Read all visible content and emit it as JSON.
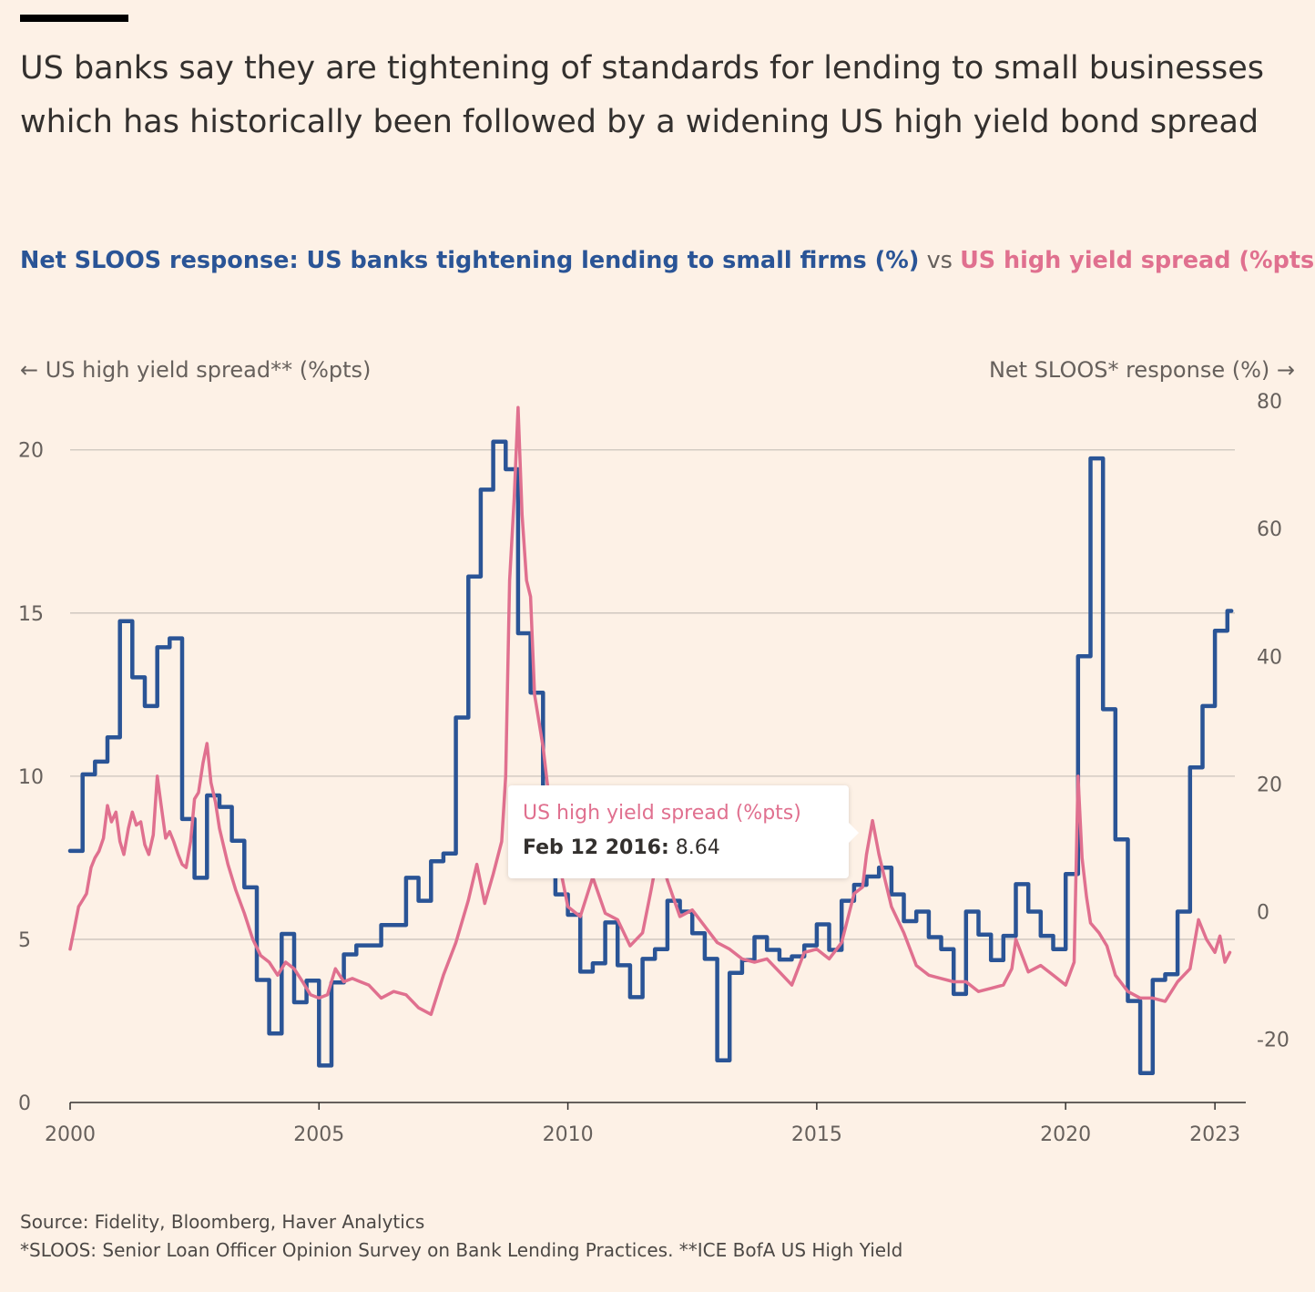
{
  "header": {
    "title": "US banks say they are tightening of standards for lending to small businesses which has historically been followed by a widening US high yield bond spread",
    "subtitle_series1": "Net SLOOS response: US banks tightening lending to small firms (%)",
    "subtitle_vs": "vs",
    "subtitle_series2": "US high yield spread (%pts)"
  },
  "axes": {
    "left_title": "← US high yield spread** (%pts)",
    "right_title": "Net SLOOS* response (%) →"
  },
  "tooltip": {
    "series": "US high yield spread (%pts)",
    "date": "Feb 12 2016:",
    "value": "8.64"
  },
  "footer": {
    "source": "Source: Fidelity, Bloomberg, Haver Analytics",
    "note": "*SLOOS: Senior Loan Officer Opinion Survey on Bank Lending Practices. **ICE BofA US High Yield"
  },
  "colors": {
    "sloos": "#2a5496",
    "spread": "#e0708f",
    "grid": "#cbc4bc",
    "background": "#fdf1e6"
  },
  "chart_data": {
    "type": "line",
    "title": "US banks say they are tightening of standards for lending to small businesses which has historically been followed by a widening US high yield bond spread",
    "x_ticks": [
      "2000",
      "2005",
      "2010",
      "2015",
      "2020",
      "2023"
    ],
    "xlim": [
      2000,
      2023.4
    ],
    "y_left": {
      "label": "← US high yield spread** (%pts)",
      "lim": [
        0,
        21.5
      ],
      "ticks": [
        "0",
        "5",
        "10",
        "15",
        "20"
      ]
    },
    "y_right": {
      "label": "Net SLOOS* response (%) →",
      "lim": [
        -29.9,
        80
      ],
      "ticks": [
        "-20",
        "0",
        "20",
        "40",
        "60",
        "80"
      ]
    },
    "grid": true,
    "series": [
      {
        "name": "Net SLOOS response: US banks tightening lending to small firms (%)",
        "axis": "right",
        "style": "step",
        "x": [
          2000.0,
          2000.25,
          2000.5,
          2000.75,
          2001.0,
          2001.25,
          2001.5,
          2001.75,
          2002.0,
          2002.25,
          2002.5,
          2002.75,
          2003.0,
          2003.25,
          2003.5,
          2003.75,
          2004.0,
          2004.25,
          2004.5,
          2004.75,
          2005.0,
          2005.25,
          2005.5,
          2005.75,
          2006.0,
          2006.25,
          2006.5,
          2006.75,
          2007.0,
          2007.25,
          2007.5,
          2007.75,
          2008.0,
          2008.25,
          2008.5,
          2008.75,
          2009.0,
          2009.25,
          2009.5,
          2009.75,
          2010.0,
          2010.25,
          2010.5,
          2010.75,
          2011.0,
          2011.25,
          2011.5,
          2011.75,
          2012.0,
          2012.25,
          2012.5,
          2012.75,
          2013.0,
          2013.25,
          2013.5,
          2013.75,
          2014.0,
          2014.25,
          2014.5,
          2014.75,
          2015.0,
          2015.25,
          2015.5,
          2015.75,
          2016.0,
          2016.25,
          2016.5,
          2016.75,
          2017.0,
          2017.25,
          2017.5,
          2017.75,
          2018.0,
          2018.25,
          2018.5,
          2018.75,
          2019.0,
          2019.25,
          2019.5,
          2019.75,
          2020.0,
          2020.25,
          2020.5,
          2020.75,
          2021.0,
          2021.25,
          2021.5,
          2021.75,
          2022.0,
          2022.25,
          2022.5,
          2022.75,
          2023.0,
          2023.25
        ],
        "y": [
          9.5,
          21.5,
          23.5,
          27.3,
          45.5,
          36.7,
          32.2,
          41.4,
          42.8,
          14.5,
          5.3,
          18.2,
          16.4,
          11.1,
          3.8,
          -10.7,
          -19.1,
          -3.5,
          -14.2,
          -10.8,
          -24.1,
          -11.1,
          -6.7,
          -5.3,
          -5.3,
          -2.1,
          -2.1,
          5.3,
          1.7,
          7.9,
          9.1,
          30.4,
          52.5,
          66.1,
          73.6,
          69.3,
          43.6,
          34.3,
          19.0,
          2.7,
          -0.5,
          -9.4,
          -8.1,
          -1.7,
          -8.4,
          -13.4,
          -7.4,
          -5.9,
          1.7,
          0.0,
          -3.4,
          -7.4,
          -23.3,
          -9.6,
          -7.6,
          -4.0,
          -6.0,
          -7.5,
          -7.0,
          -5.3,
          -2.0,
          -6.0,
          1.7,
          4.2,
          5.5,
          6.9,
          2.7,
          -1.5,
          0.0,
          -4.0,
          -5.9,
          -12.9,
          0.0,
          -3.6,
          -7.6,
          -3.8,
          4.3,
          0.0,
          -3.8,
          -5.9,
          5.9,
          40.0,
          71.0,
          31.7,
          11.3,
          -14.0,
          -25.3,
          -10.7,
          -9.8,
          0.0,
          22.6,
          32.2,
          44.0,
          47.1
        ]
      },
      {
        "name": "US high yield spread (%pts)",
        "axis": "left",
        "style": "line",
        "x": [
          2000.0,
          2000.08,
          2000.17,
          2000.25,
          2000.33,
          2000.42,
          2000.5,
          2000.58,
          2000.67,
          2000.75,
          2000.83,
          2000.92,
          2001.0,
          2001.08,
          2001.17,
          2001.25,
          2001.33,
          2001.42,
          2001.5,
          2001.58,
          2001.67,
          2001.75,
          2001.83,
          2001.92,
          2002.0,
          2002.08,
          2002.17,
          2002.25,
          2002.33,
          2002.42,
          2002.5,
          2002.58,
          2002.67,
          2002.75,
          2002.83,
          2002.92,
          2003.0,
          2003.17,
          2003.33,
          2003.5,
          2003.67,
          2003.83,
          2004.0,
          2004.17,
          2004.33,
          2004.5,
          2004.67,
          2004.83,
          2005.0,
          2005.17,
          2005.33,
          2005.5,
          2005.67,
          2005.83,
          2006.0,
          2006.25,
          2006.5,
          2006.75,
          2007.0,
          2007.25,
          2007.5,
          2007.75,
          2008.0,
          2008.17,
          2008.33,
          2008.5,
          2008.67,
          2008.75,
          2008.83,
          2008.92,
          2009.0,
          2009.08,
          2009.17,
          2009.25,
          2009.33,
          2009.5,
          2009.67,
          2009.83,
          2010.0,
          2010.25,
          2010.5,
          2010.75,
          2011.0,
          2011.25,
          2011.5,
          2011.67,
          2011.83,
          2012.0,
          2012.25,
          2012.5,
          2012.75,
          2013.0,
          2013.25,
          2013.5,
          2013.75,
          2014.0,
          2014.25,
          2014.5,
          2014.75,
          2015.0,
          2015.25,
          2015.5,
          2015.75,
          2015.92,
          2016.0,
          2016.12,
          2016.25,
          2016.5,
          2016.75,
          2017.0,
          2017.25,
          2017.5,
          2017.75,
          2018.0,
          2018.25,
          2018.5,
          2018.75,
          2018.92,
          2019.0,
          2019.25,
          2019.5,
          2019.75,
          2020.0,
          2020.17,
          2020.25,
          2020.33,
          2020.42,
          2020.5,
          2020.67,
          2020.83,
          2021.0,
          2021.25,
          2021.5,
          2021.75,
          2022.0,
          2022.25,
          2022.5,
          2022.67,
          2022.83,
          2023.0,
          2023.1,
          2023.2,
          2023.3
        ],
        "y": [
          4.7,
          5.3,
          6.0,
          6.2,
          6.4,
          7.2,
          7.5,
          7.7,
          8.1,
          9.1,
          8.6,
          8.9,
          8.0,
          7.6,
          8.4,
          8.9,
          8.5,
          8.6,
          7.9,
          7.6,
          8.2,
          10.0,
          9.1,
          8.1,
          8.3,
          8.0,
          7.6,
          7.3,
          7.2,
          8.0,
          9.3,
          9.5,
          10.4,
          11.0,
          9.8,
          9.2,
          8.4,
          7.3,
          6.5,
          5.8,
          5.0,
          4.5,
          4.3,
          3.9,
          4.3,
          4.1,
          3.7,
          3.3,
          3.2,
          3.3,
          4.1,
          3.7,
          3.8,
          3.7,
          3.6,
          3.2,
          3.4,
          3.3,
          2.9,
          2.7,
          3.9,
          4.9,
          6.2,
          7.3,
          6.1,
          7.0,
          8.0,
          10.0,
          16.0,
          18.5,
          21.3,
          18.0,
          16.0,
          15.5,
          12.5,
          10.9,
          8.7,
          7.3,
          6.0,
          5.7,
          6.9,
          5.8,
          5.6,
          4.8,
          5.2,
          6.5,
          7.8,
          6.8,
          5.7,
          5.9,
          5.4,
          4.9,
          4.7,
          4.4,
          4.3,
          4.4,
          4.0,
          3.6,
          4.6,
          4.7,
          4.4,
          4.9,
          6.4,
          6.6,
          7.6,
          8.64,
          7.6,
          6.0,
          5.2,
          4.2,
          3.9,
          3.8,
          3.7,
          3.7,
          3.4,
          3.5,
          3.6,
          4.1,
          5.0,
          4.0,
          4.2,
          3.9,
          3.6,
          4.3,
          10.0,
          7.5,
          6.3,
          5.5,
          5.2,
          4.8,
          3.9,
          3.4,
          3.2,
          3.2,
          3.1,
          3.7,
          4.1,
          5.6,
          5.0,
          4.6,
          5.1,
          4.3,
          4.6
        ]
      }
    ],
    "annotation": {
      "series": "US high yield spread (%pts)",
      "x": 2016.12,
      "label": "Feb 12 2016:",
      "value": 8.64
    }
  }
}
